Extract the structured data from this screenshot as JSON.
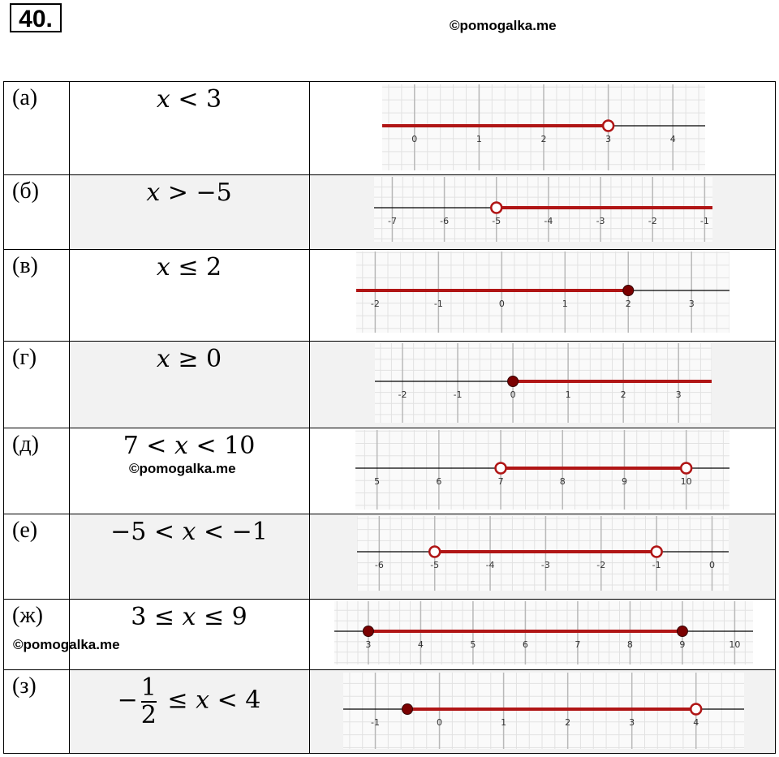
{
  "header": {
    "problem_number": "40.",
    "watermark": "©pomogalka.me"
  },
  "watermarks": {
    "row_d": "©pomogalka.me",
    "row_zh": "©pomogalka.me"
  },
  "rows": [
    {
      "label": "(а)",
      "inequality": {
        "var": "x",
        "rel": " < ",
        "rhs": "3"
      },
      "chart_data": {
        "type": "number-line",
        "ticks": [
          "0",
          "1",
          "2",
          "3",
          "4"
        ],
        "tick_values": [
          0,
          1,
          2,
          3,
          4
        ],
        "xlim": [
          -0.5,
          4.5
        ],
        "shaded": [
          -0.5,
          3
        ],
        "endpoints": [
          {
            "value": 3,
            "closed": false
          }
        ]
      }
    },
    {
      "label": "(б)",
      "inequality": {
        "var": "x",
        "rel": " > ",
        "rhs": "−5"
      },
      "chart_data": {
        "type": "number-line",
        "ticks": [
          "-7",
          "-6",
          "-5",
          "-4",
          "-3",
          "-2",
          "-1"
        ],
        "tick_values": [
          -7,
          -6,
          -5,
          -4,
          -3,
          -2,
          -1
        ],
        "xlim": [
          -7.35,
          -0.85
        ],
        "shaded": [
          -5,
          -0.85
        ],
        "endpoints": [
          {
            "value": -5,
            "closed": false
          }
        ]
      }
    },
    {
      "label": "(в)",
      "inequality": {
        "var": "x",
        "rel": " ≤ ",
        "rhs": "2"
      },
      "chart_data": {
        "type": "number-line",
        "ticks": [
          "-2",
          "-1",
          "0",
          "1",
          "2",
          "3"
        ],
        "tick_values": [
          -2,
          -1,
          0,
          1,
          2,
          3
        ],
        "xlim": [
          -2.3,
          3.6
        ],
        "shaded": [
          -2.3,
          2
        ],
        "endpoints": [
          {
            "value": 2,
            "closed": true
          }
        ]
      }
    },
    {
      "label": "(г)",
      "inequality": {
        "var": "x",
        "rel": " ≥ ",
        "rhs": "0"
      },
      "chart_data": {
        "type": "number-line",
        "ticks": [
          "-2",
          "-1",
          "0",
          "1",
          "2",
          "3"
        ],
        "tick_values": [
          -2,
          -1,
          0,
          1,
          2,
          3
        ],
        "xlim": [
          -2.5,
          3.6
        ],
        "shaded": [
          0,
          3.6
        ],
        "endpoints": [
          {
            "value": 0,
            "closed": true
          }
        ]
      }
    },
    {
      "label": "(д)",
      "inequality": {
        "lhs": "7 < ",
        "var": "x",
        "rel": " < ",
        "rhs": "10"
      },
      "chart_data": {
        "type": "number-line",
        "ticks": [
          "5",
          "6",
          "7",
          "8",
          "9",
          "10"
        ],
        "tick_values": [
          5,
          6,
          7,
          8,
          9,
          10
        ],
        "xlim": [
          4.65,
          10.7
        ],
        "shaded": [
          7,
          10
        ],
        "endpoints": [
          {
            "value": 7,
            "closed": false
          },
          {
            "value": 10,
            "closed": false
          }
        ]
      }
    },
    {
      "label": "(е)",
      "inequality": {
        "lhs": "−5 < ",
        "var": "x",
        "rel": " < ",
        "rhs": "−1"
      },
      "chart_data": {
        "type": "number-line",
        "ticks": [
          "-6",
          "-5",
          "-4",
          "-3",
          "-2",
          "-1",
          "0"
        ],
        "tick_values": [
          -6,
          -5,
          -4,
          -3,
          -2,
          -1,
          0
        ],
        "xlim": [
          -6.4,
          0.3
        ],
        "shaded": [
          -5,
          -1
        ],
        "endpoints": [
          {
            "value": -5,
            "closed": false
          },
          {
            "value": -1,
            "closed": false
          }
        ]
      }
    },
    {
      "label": "(ж)",
      "inequality": {
        "lhs": "3 ≤ ",
        "var": "x",
        "rel": " ≤ ",
        "rhs": "9"
      },
      "chart_data": {
        "type": "number-line",
        "ticks": [
          "3",
          "4",
          "5",
          "6",
          "7",
          "8",
          "9",
          "10"
        ],
        "tick_values": [
          3,
          4,
          5,
          6,
          7,
          8,
          9,
          10
        ],
        "xlim": [
          2.35,
          10.35
        ],
        "shaded": [
          3,
          9
        ],
        "endpoints": [
          {
            "value": 3,
            "closed": true
          },
          {
            "value": 9,
            "closed": true
          }
        ]
      }
    },
    {
      "label": "(з)",
      "inequality": {
        "minus": "−",
        "num": "1",
        "den": "2",
        "lhs_rel": " ≤ ",
        "var": "x",
        "rel": " < ",
        "rhs": "4"
      },
      "chart_data": {
        "type": "number-line",
        "ticks": [
          "-1",
          "0",
          "1",
          "2",
          "3",
          "4"
        ],
        "tick_values": [
          -1,
          0,
          1,
          2,
          3,
          4
        ],
        "xlim": [
          -1.5,
          4.75
        ],
        "shaded": [
          -0.5,
          4
        ],
        "endpoints": [
          {
            "value": -0.5,
            "closed": true
          },
          {
            "value": 4,
            "closed": false
          }
        ]
      }
    }
  ],
  "colors": {
    "shade": "#b01515",
    "shade_dark": "#7a0000",
    "grid_major": "#b9b9b9",
    "grid_minor": "#e2e2e2",
    "panel": "#fafafa"
  }
}
